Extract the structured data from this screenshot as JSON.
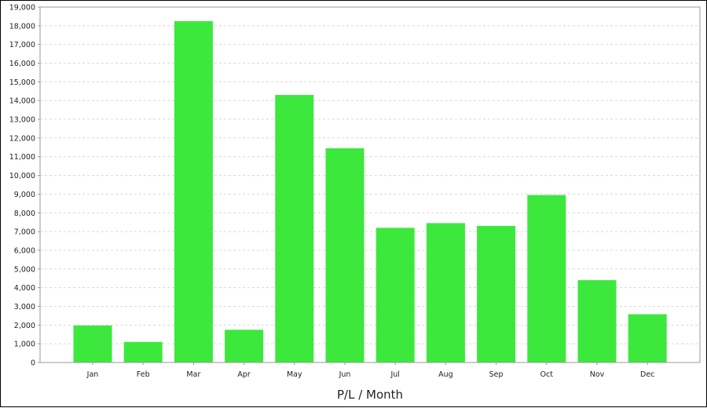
{
  "chart_data": {
    "type": "bar",
    "categories": [
      "Jan",
      "Feb",
      "Mar",
      "Apr",
      "May",
      "Jun",
      "Jul",
      "Aug",
      "Sep",
      "Oct",
      "Nov",
      "Dec"
    ],
    "values": [
      1980,
      1100,
      18250,
      1750,
      14300,
      11450,
      7200,
      7450,
      7300,
      8950,
      4400,
      2580
    ],
    "title": "",
    "xlabel": "P/L / Month",
    "ylabel": "",
    "ylim": [
      0,
      19000
    ],
    "yticks": [
      0,
      1000,
      2000,
      3000,
      4000,
      5000,
      6000,
      7000,
      8000,
      9000,
      10000,
      11000,
      12000,
      13000,
      14000,
      15000,
      16000,
      17000,
      18000,
      19000
    ],
    "ytick_labels": [
      "0",
      "1,000",
      "2,000",
      "3,000",
      "4,000",
      "5,000",
      "6,000",
      "7,000",
      "8,000",
      "9,000",
      "10,000",
      "11,000",
      "12,000",
      "13,000",
      "14,000",
      "15,000",
      "16,000",
      "17,000",
      "18,000",
      "19,000"
    ],
    "grid": true,
    "legend": "none",
    "bar_color": "#3de83d",
    "grid_color": "#d8d8d8",
    "axis_color": "#999999"
  }
}
